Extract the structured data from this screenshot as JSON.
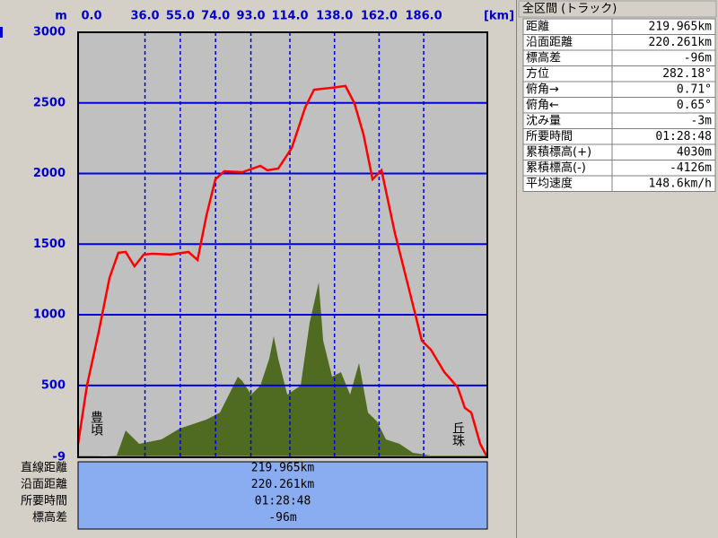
{
  "chart_data": {
    "type": "line",
    "y_unit": "m",
    "x_unit": "[km]",
    "xlim": [
      0,
      220.261
    ],
    "ylim": [
      -9,
      3000
    ],
    "xticks": [
      {
        "value": 0,
        "label": "0.0"
      },
      {
        "value": 36,
        "label": "36.0"
      },
      {
        "value": 55,
        "label": "55.0"
      },
      {
        "value": 74,
        "label": "74.0"
      },
      {
        "value": 93,
        "label": "93.0"
      },
      {
        "value": 114,
        "label": "114.0"
      },
      {
        "value": 138,
        "label": "138.0"
      },
      {
        "value": 162,
        "label": "162.0"
      },
      {
        "value": 186,
        "label": "186.0"
      }
    ],
    "yticks": [
      -9,
      500,
      1000,
      1500,
      2000,
      2500,
      3000
    ],
    "grid": true,
    "annotations": [
      "豊頃",
      "丘珠"
    ],
    "series": [
      {
        "style": "area",
        "color": "#4f6b22",
        "x": [
          0,
          20.8,
          25.6,
          32.9,
          44.9,
          54.6,
          69.1,
          76.3,
          81.2,
          86,
          88.4,
          93.2,
          98.1,
          102.9,
          105.3,
          107.7,
          112.6,
          119.8,
          124.6,
          129.5,
          131.9,
          136.7,
          141.5,
          146.4,
          151.2,
          156,
          160.9,
          165.7,
          173,
          180.2,
          189.9,
          220.3
        ],
        "values": [
          -9,
          4,
          181,
          86,
          118,
          194,
          258,
          308,
          435,
          562,
          531,
          435,
          499,
          689,
          848,
          689,
          435,
          499,
          943,
          1229,
          816,
          562,
          594,
          435,
          658,
          308,
          245,
          118,
          86,
          23,
          4,
          4
        ]
      },
      {
        "style": "line",
        "color": "#ff0000",
        "x": [
          0,
          4.8,
          11.1,
          16.9,
          21.7,
          25.6,
          30.4,
          35.3,
          40.1,
          49.8,
          59.4,
          64.3,
          69.1,
          73.9,
          78.7,
          88.4,
          98.1,
          101.9,
          107.7,
          115,
          122.2,
          127,
          136.7,
          143.9,
          148.7,
          153.6,
          158.5,
          163.3,
          170.5,
          177.8,
          185,
          189.9,
          197.1,
          204.3,
          208.2,
          211.6,
          216.4,
          220.261
        ],
        "values": [
          86,
          499,
          880,
          1261,
          1439,
          1445,
          1343,
          1426,
          1432,
          1426,
          1445,
          1388,
          1705,
          1959,
          2016,
          2010,
          2054,
          2023,
          2035,
          2181,
          2467,
          2594,
          2607,
          2620,
          2499,
          2277,
          1959,
          2023,
          1578,
          1197,
          816,
          753,
          594,
          486,
          340,
          308,
          86,
          -9
        ]
      }
    ]
  },
  "summary": [
    {
      "label": "直線距離",
      "value": "219.965km"
    },
    {
      "label": "沿面距離",
      "value": "220.261km"
    },
    {
      "label": "所要時間",
      "value": "01:28:48"
    },
    {
      "label": "標高差",
      "value": "-96m"
    }
  ],
  "panel": {
    "title": "全区間 (トラック)",
    "rows": [
      [
        "距離",
        "219.965km"
      ],
      [
        "沿面距離",
        "220.261km"
      ],
      [
        "標高差",
        "-96m"
      ],
      [
        "方位",
        "282.18°"
      ],
      [
        "俯角→",
        "0.71°"
      ],
      [
        "俯角←",
        "0.65°"
      ],
      [
        "沈み量",
        "-3m"
      ],
      [
        "所要時間",
        "01:28:48"
      ],
      [
        "累積標高(+)",
        "4030m"
      ],
      [
        "累積標高(-)",
        "-4126m"
      ],
      [
        "平均速度",
        "148.6km/h"
      ]
    ]
  }
}
